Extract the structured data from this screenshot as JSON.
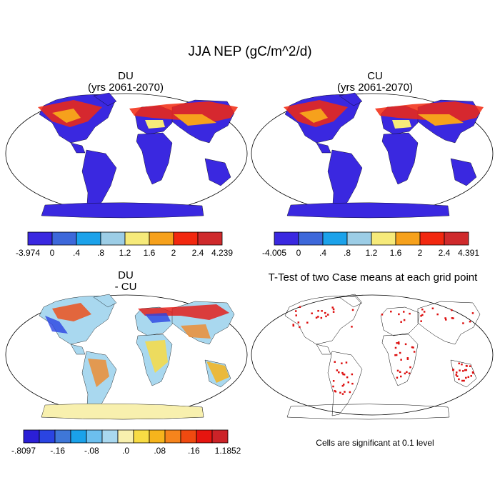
{
  "title": "JJA NEP (gC/m^2/d)",
  "colors": {
    "nep_scale": [
      "#3a28e0",
      "#3d68da",
      "#1ca2ea",
      "#9ccde6",
      "#f6ea7a",
      "#f6a11c",
      "#f2280f",
      "#cf2a2c"
    ],
    "diff_scale": [
      "#2b1fd6",
      "#2a44e2",
      "#3f77d8",
      "#1aa2ea",
      "#6cbfee",
      "#a9d8ef",
      "#f8f0ae",
      "#f8dc44",
      "#f6b41c",
      "#f6841c",
      "#f04a10",
      "#e6150f",
      "#cc2328"
    ],
    "land_outline": "#000000",
    "ttest_cells": "#dd1111"
  },
  "panels": [
    {
      "id": "du",
      "title_line1": "DU",
      "title_line2": "(yrs 2061-2070)"
    },
    {
      "id": "cu",
      "title_line1": "CU",
      "title_line2": "(yrs 2061-2070)"
    },
    {
      "id": "diff",
      "title_line1": "DU",
      "title_line2": "- CU"
    },
    {
      "id": "ttest",
      "title_line1": "T-Test of two Case means at each grid point",
      "title_line2": ""
    }
  ],
  "colorbars": [
    {
      "id": "du",
      "labels": [
        "-3.974",
        "0",
        ".4",
        ".8",
        "1.2",
        "1.6",
        "2",
        "2.4",
        "4.239"
      ]
    },
    {
      "id": "cu",
      "labels": [
        "-4.005",
        "0",
        ".4",
        ".8",
        "1.2",
        "1.6",
        "2",
        "2.4",
        "4.391"
      ]
    },
    {
      "id": "diff",
      "labels": [
        "-.8097",
        "-.16",
        "-.08",
        ".0",
        ".08",
        ".16",
        "1.1852"
      ]
    }
  ],
  "note": "Cells are significant at 0.1 level",
  "chart_data": [
    {
      "type": "heatmap",
      "title": "DU",
      "subtitle": "(yrs 2061-2070)",
      "variable": "JJA NEP (gC/m^2/d)",
      "projection": "Robinson world map",
      "scale_range": [
        -3.974,
        4.239
      ],
      "scale_levels": [
        0,
        0.4,
        0.8,
        1.2,
        1.6,
        2,
        2.4
      ]
    },
    {
      "type": "heatmap",
      "title": "CU",
      "subtitle": "(yrs 2061-2070)",
      "variable": "JJA NEP (gC/m^2/d)",
      "projection": "Robinson world map",
      "scale_range": [
        -4.005,
        4.391
      ],
      "scale_levels": [
        0,
        0.4,
        0.8,
        1.2,
        1.6,
        2,
        2.4
      ]
    },
    {
      "type": "heatmap",
      "title": "DU",
      "subtitle": "- CU",
      "projection": "Robinson world map",
      "scale_range": [
        -0.8097,
        1.1852
      ],
      "scale_labels": [
        "-.16",
        "-.08",
        ".0",
        ".08",
        ".16"
      ]
    },
    {
      "type": "heatmap",
      "title": "T-Test of two Case means at each grid point",
      "projection": "Robinson world map",
      "note": "Cells are significant at 0.1 level"
    }
  ]
}
